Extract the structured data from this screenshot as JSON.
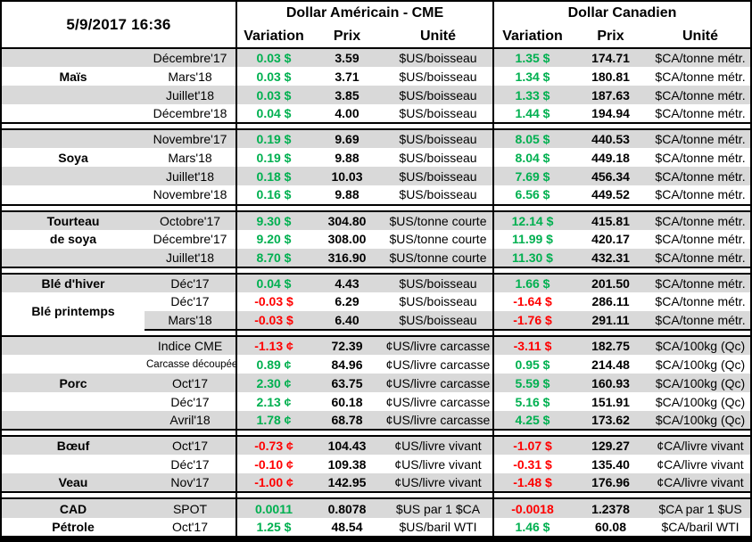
{
  "header": {
    "date": "5/9/2017 16:36",
    "group_us": "Dollar Américain - CME",
    "group_ca": "Dollar Canadien",
    "col_variation": "Variation",
    "col_prix": "Prix",
    "col_unite": "Unité"
  },
  "colors": {
    "positive": "#00B050",
    "negative": "#FF0000",
    "row_stripe": "#D9D9D9",
    "border": "#000000"
  },
  "sections": [
    {
      "labels": [
        {
          "text": "Maïs",
          "row": 1
        }
      ],
      "rows": [
        {
          "month": "Décembre'17",
          "us_var": "0.03 $",
          "us_prix": "3.59",
          "us_unit": "$US/boisseau",
          "ca_var": "1.35 $",
          "ca_prix": "174.71",
          "ca_unit": "$CA/tonne métr."
        },
        {
          "month": "Mars'18",
          "us_var": "0.03 $",
          "us_prix": "3.71",
          "us_unit": "$US/boisseau",
          "ca_var": "1.34 $",
          "ca_prix": "180.81",
          "ca_unit": "$CA/tonne métr."
        },
        {
          "month": "Juillet'18",
          "us_var": "0.03 $",
          "us_prix": "3.85",
          "us_unit": "$US/boisseau",
          "ca_var": "1.33 $",
          "ca_prix": "187.63",
          "ca_unit": "$CA/tonne métr."
        },
        {
          "month": "Décembre'18",
          "us_var": "0.04 $",
          "us_prix": "4.00",
          "us_unit": "$US/boisseau",
          "ca_var": "1.44 $",
          "ca_prix": "194.94",
          "ca_unit": "$CA/tonne métr."
        }
      ]
    },
    {
      "labels": [
        {
          "text": "Soya",
          "row": 1
        }
      ],
      "rows": [
        {
          "month": "Novembre'17",
          "us_var": "0.19 $",
          "us_prix": "9.69",
          "us_unit": "$US/boisseau",
          "ca_var": "8.05 $",
          "ca_prix": "440.53",
          "ca_unit": "$CA/tonne métr."
        },
        {
          "month": "Mars'18",
          "us_var": "0.19 $",
          "us_prix": "9.88",
          "us_unit": "$US/boisseau",
          "ca_var": "8.04 $",
          "ca_prix": "449.18",
          "ca_unit": "$CA/tonne métr."
        },
        {
          "month": "Juillet'18",
          "us_var": "0.18 $",
          "us_prix": "10.03",
          "us_unit": "$US/boisseau",
          "ca_var": "7.69 $",
          "ca_prix": "456.34",
          "ca_unit": "$CA/tonne métr."
        },
        {
          "month": "Novembre'18",
          "us_var": "0.16 $",
          "us_prix": "9.88",
          "us_unit": "$US/boisseau",
          "ca_var": "6.56 $",
          "ca_prix": "449.52",
          "ca_unit": "$CA/tonne métr."
        }
      ]
    },
    {
      "labels": [
        {
          "text": "Tourteau",
          "row": 0
        },
        {
          "text": "de soya",
          "row": 1
        }
      ],
      "rows": [
        {
          "month": "Octobre'17",
          "us_var": "9.30 $",
          "us_prix": "304.80",
          "us_unit": "$US/tonne courte",
          "ca_var": "12.14 $",
          "ca_prix": "415.81",
          "ca_unit": "$CA/tonne métr."
        },
        {
          "month": "Décembre'17",
          "us_var": "9.20 $",
          "us_prix": "308.00",
          "us_unit": "$US/tonne courte",
          "ca_var": "11.99 $",
          "ca_prix": "420.17",
          "ca_unit": "$CA/tonne métr."
        },
        {
          "month": "Juillet'18",
          "us_var": "8.70 $",
          "us_prix": "316.90",
          "us_unit": "$US/tonne courte",
          "ca_var": "11.30 $",
          "ca_prix": "432.31",
          "ca_unit": "$CA/tonne métr."
        }
      ]
    },
    {
      "labels": [
        {
          "text": "Blé d'hiver",
          "row": 0
        },
        {
          "text": "Blé printemps",
          "row": 1,
          "rowspan": 2
        }
      ],
      "rows": [
        {
          "month": "Déc'17",
          "us_var": "0.04 $",
          "us_prix": "4.43",
          "us_unit": "$US/boisseau",
          "ca_var": "1.66 $",
          "ca_prix": "201.50",
          "ca_unit": "$CA/tonne métr."
        },
        {
          "month": "Déc'17",
          "us_var": "-0.03 $",
          "us_prix": "6.29",
          "us_unit": "$US/boisseau",
          "ca_var": "-1.64 $",
          "ca_prix": "286.11",
          "ca_unit": "$CA/tonne métr."
        },
        {
          "month": "Mars'18",
          "us_var": "-0.03 $",
          "us_prix": "6.40",
          "us_unit": "$US/boisseau",
          "ca_var": "-1.76 $",
          "ca_prix": "291.11",
          "ca_unit": "$CA/tonne métr."
        }
      ]
    },
    {
      "labels": [
        {
          "text": "Porc",
          "row": 2
        }
      ],
      "rows": [
        {
          "month": "Indice CME",
          "us_var": "-1.13 ¢",
          "us_prix": "72.39",
          "us_unit": "¢US/livre carcasse",
          "ca_var": "-3.11 $",
          "ca_prix": "182.75",
          "ca_unit": "$CA/100kg (Qc)"
        },
        {
          "month": "Carcasse découpée",
          "small": true,
          "us_var": "0.89 ¢",
          "us_prix": "84.96",
          "us_unit": "¢US/livre carcasse",
          "ca_var": "0.95 $",
          "ca_prix": "214.48",
          "ca_unit": "$CA/100kg (Qc)"
        },
        {
          "month": "Oct'17",
          "us_var": "2.30 ¢",
          "us_prix": "63.75",
          "us_unit": "¢US/livre carcasse",
          "ca_var": "5.59 $",
          "ca_prix": "160.93",
          "ca_unit": "$CA/100kg (Qc)"
        },
        {
          "month": "Déc'17",
          "us_var": "2.13 ¢",
          "us_prix": "60.18",
          "us_unit": "¢US/livre carcasse",
          "ca_var": "5.16 $",
          "ca_prix": "151.91",
          "ca_unit": "$CA/100kg (Qc)"
        },
        {
          "month": "Avril'18",
          "us_var": "1.78 ¢",
          "us_prix": "68.78",
          "us_unit": "¢US/livre carcasse",
          "ca_var": "4.25 $",
          "ca_prix": "173.62",
          "ca_unit": "$CA/100kg (Qc)"
        }
      ]
    },
    {
      "labels": [
        {
          "text": "Bœuf",
          "row": 0
        },
        {
          "text": "Veau",
          "row": 2
        }
      ],
      "rows": [
        {
          "month": "Oct'17",
          "us_var": "-0.73 ¢",
          "us_prix": "104.43",
          "us_unit": "¢US/livre vivant",
          "ca_var": "-1.07 $",
          "ca_prix": "129.27",
          "ca_unit": "¢CA/livre vivant"
        },
        {
          "month": "Déc'17",
          "us_var": "-0.10 ¢",
          "us_prix": "109.38",
          "us_unit": "¢US/livre vivant",
          "ca_var": "-0.31 $",
          "ca_prix": "135.40",
          "ca_unit": "¢CA/livre vivant"
        },
        {
          "month": "Nov'17",
          "us_var": "-1.00 ¢",
          "us_prix": "142.95",
          "us_unit": "¢US/livre vivant",
          "ca_var": "-1.48 $",
          "ca_prix": "176.96",
          "ca_unit": "¢CA/livre vivant"
        }
      ]
    },
    {
      "labels": [
        {
          "text": "CAD",
          "row": 0
        },
        {
          "text": "Pétrole",
          "row": 1
        }
      ],
      "rows": [
        {
          "month": "SPOT",
          "us_var": "0.0011",
          "us_prix": "0.8078",
          "us_unit": "$US par 1 $CA",
          "ca_var": "-0.0018",
          "ca_prix": "1.2378",
          "ca_unit": "$CA par 1 $US"
        },
        {
          "month": "Oct'17",
          "us_var": "1.25 $",
          "us_prix": "48.54",
          "us_unit": "$US/baril WTI",
          "ca_var": "1.46 $",
          "ca_prix": "60.08",
          "ca_unit": "$CA/baril WTI"
        }
      ]
    }
  ]
}
